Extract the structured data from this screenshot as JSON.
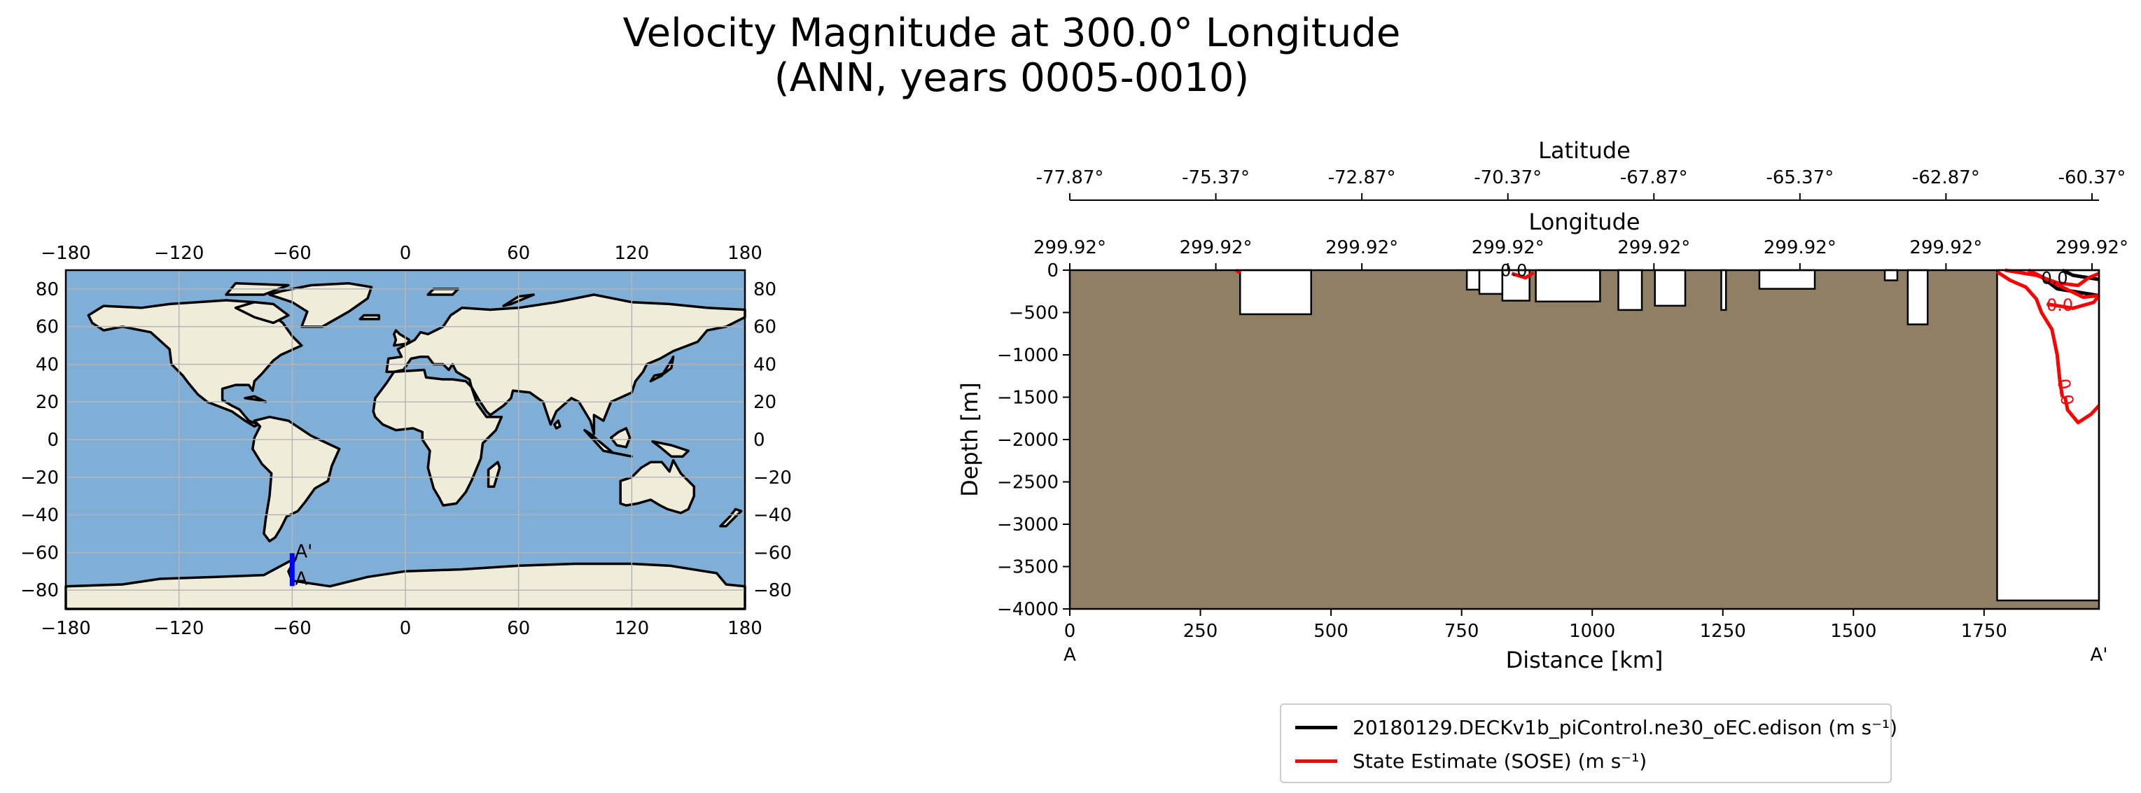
{
  "figure": {
    "title_line1": "Velocity Magnitude at 300.0° Longitude",
    "title_line2": "(ANN, years 0005-0010)"
  },
  "chart_data": [
    {
      "type": "map",
      "projection": "PlateCarree",
      "xlim": [
        -180,
        180
      ],
      "ylim": [
        -90,
        90
      ],
      "xticks": [
        -180,
        -120,
        -60,
        0,
        60,
        120,
        180
      ],
      "yticks": [
        -80,
        -60,
        -40,
        -20,
        0,
        20,
        40,
        60,
        80
      ],
      "grid": true,
      "transect": {
        "lon": -60,
        "lat_start": -77.87,
        "lat_end": -60.37,
        "color": "#0000ff",
        "start_label": "A",
        "end_label": "A'"
      },
      "colors": {
        "ocean": "#7fafd6",
        "land": "#efedd9",
        "grid": "#b5b5b5"
      }
    },
    {
      "type": "section",
      "xlabel": "Distance [km]",
      "ylabel": "Depth [m]",
      "xlim": [
        0,
        1970
      ],
      "ylim": [
        -4000,
        0
      ],
      "xticks": [
        0,
        250,
        500,
        750,
        1000,
        1250,
        1500,
        1750
      ],
      "yticks": [
        0,
        -500,
        -1000,
        -1500,
        -2000,
        -2500,
        -3000,
        -3500,
        -4000
      ],
      "start_label": "A",
      "end_label": "A'",
      "top_axis_lat": {
        "label": "Latitude",
        "ticks": [
          "-77.87°",
          "-75.37°",
          "-72.87°",
          "-70.37°",
          "-67.87°",
          "-65.37°",
          "-62.87°",
          "-60.37°"
        ]
      },
      "top_axis_lon": {
        "label": "Longitude",
        "ticks": [
          "299.92°",
          "299.92°",
          "299.92°",
          "299.92°",
          "299.92°",
          "299.92°",
          "299.92°",
          "299.92°"
        ]
      },
      "terrain_color": "#8f7f65",
      "water_gaps": [
        {
          "x0": 326,
          "x1": 462,
          "bottom": -520
        },
        {
          "x0": 760,
          "x1": 784,
          "bottom": -230
        },
        {
          "x0": 784,
          "x1": 828,
          "bottom": -280
        },
        {
          "x0": 828,
          "x1": 880,
          "bottom": -360
        },
        {
          "x0": 892,
          "x1": 1015,
          "bottom": -370
        },
        {
          "x0": 1050,
          "x1": 1095,
          "bottom": -470
        },
        {
          "x0": 1120,
          "x1": 1178,
          "bottom": -420
        },
        {
          "x0": 1247,
          "x1": 1256,
          "bottom": -470
        },
        {
          "x0": 1320,
          "x1": 1426,
          "bottom": -220
        },
        {
          "x0": 1560,
          "x1": 1584,
          "bottom": -120
        },
        {
          "x0": 1604,
          "x1": 1642,
          "bottom": -640
        },
        {
          "x0": 1775,
          "x1": 1970,
          "bottom": -3900
        }
      ],
      "contour_labels": [
        {
          "series": 0,
          "text": "0.0",
          "x": 850,
          "y": -70
        },
        {
          "series": 0,
          "text": "0.0",
          "x": 1885,
          "y": -160
        },
        {
          "series": 1,
          "text": "0.0",
          "x": 1895,
          "y": -480
        },
        {
          "series": 1,
          "text": "0.0",
          "x": 1895,
          "y": -1450
        }
      ],
      "series": [
        {
          "name": "20180129.DECKv1b_piControl.ne30_oEC.edison (m s⁻¹)",
          "color": "#000000"
        },
        {
          "name": "State Estimate (SOSE) (m s⁻¹)",
          "color": "#ff0000"
        }
      ]
    }
  ]
}
